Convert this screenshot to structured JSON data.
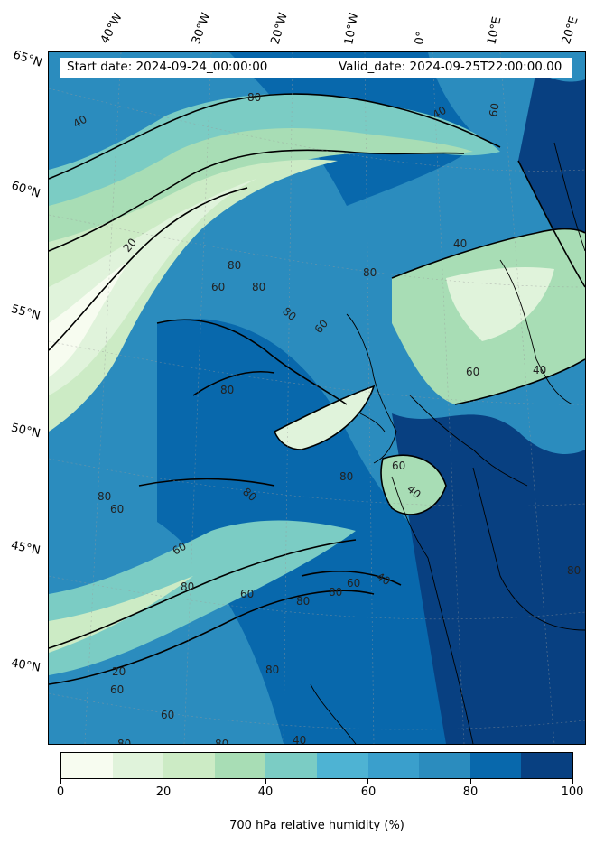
{
  "header": {
    "start_date": "Start date: 2024-09-24_00:00:00",
    "valid_date": "Valid_date: 2024-09-25T22:00:00.00"
  },
  "latitude_labels": [
    "65°N",
    "60°N",
    "55°N",
    "50°N",
    "45°N",
    "40°N"
  ],
  "longitude_labels": [
    "40°W",
    "30°W",
    "20°W",
    "10°W",
    "0°",
    "10°E",
    "20°E"
  ],
  "contour_labels": [
    "20",
    "40",
    "60",
    "80"
  ],
  "colorbar": {
    "title": "700 hPa relative humidity (%)",
    "tick_labels": [
      "0",
      "20",
      "40",
      "60",
      "80",
      "100"
    ],
    "colors": [
      "#f7fcf0",
      "#e0f3db",
      "#ccebc5",
      "#a8ddb5",
      "#7bccc4",
      "#4eb3d3",
      "#3a9fcc",
      "#2b8cbe",
      "#0868ac",
      "#084081"
    ]
  }
}
